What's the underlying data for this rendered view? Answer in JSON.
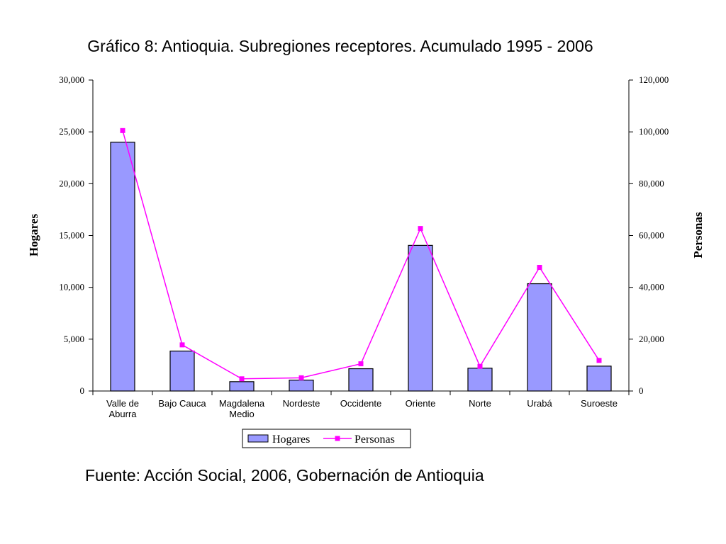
{
  "title": "Gráfico 8: Antioquia. Subregiones receptores.  Acumulado 1995 - 2006",
  "source": "Fuente: Acción Social, 2006, Gobernación de Antioquia",
  "chart_data": {
    "type": "bar",
    "categories": [
      [
        "Valle de",
        "Aburra"
      ],
      [
        "Bajo Cauca"
      ],
      [
        "Magdalena",
        "Medio"
      ],
      [
        "Nordeste"
      ],
      [
        "Occidente"
      ],
      [
        "Oriente"
      ],
      [
        "Norte"
      ],
      [
        "Urabá"
      ],
      [
        "Suroeste"
      ]
    ],
    "series": [
      {
        "name": "Hogares",
        "type": "bar",
        "axis": "left",
        "color": "#9999ff",
        "values": [
          24000,
          3850,
          900,
          1050,
          2150,
          14050,
          2200,
          10350,
          2400
        ]
      },
      {
        "name": "Personas",
        "type": "line",
        "axis": "right",
        "color": "#ff00ff",
        "values": [
          100500,
          17800,
          4700,
          5100,
          10500,
          62700,
          9500,
          47700,
          11800
        ]
      }
    ],
    "ylabel": "Hogares",
    "y2label": "Personas",
    "ylim": [
      0,
      30000
    ],
    "y2lim": [
      0,
      120000
    ],
    "yticks": [
      "0",
      "5,000",
      "10,000",
      "15,000",
      "20,000",
      "25,000",
      "30,000"
    ],
    "y2ticks": [
      "0",
      "20,000",
      "40,000",
      "60,000",
      "80,000",
      "100,000",
      "120,000"
    ],
    "grid": false,
    "legend_position": "bottom"
  }
}
